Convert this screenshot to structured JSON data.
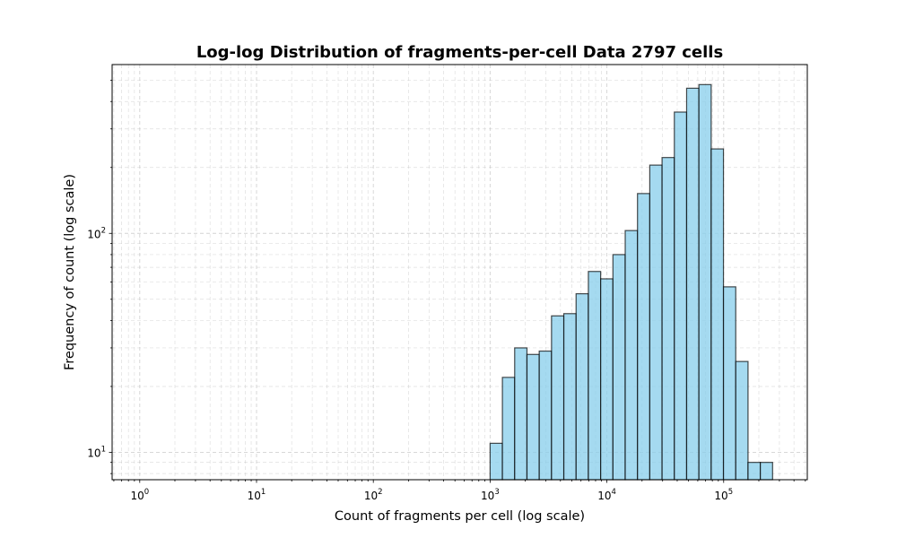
{
  "chart_data": {
    "type": "bar",
    "title": "Log-log Distribution of fragments-per-cell Data 2797 cells",
    "xlabel": "Count of fragments per cell (log scale)",
    "ylabel": "Frequency of count (log scale)",
    "x_scale": "log",
    "y_scale": "log",
    "xlim": [
      0.58,
      520000
    ],
    "ylim": [
      7.5,
      590
    ],
    "grid": true,
    "grid_style": "dashed",
    "bar_color": "#87CEEB",
    "bar_edge_color": "#000000",
    "x_ticks": [
      {
        "base": "10",
        "exp": "0",
        "value": 1
      },
      {
        "base": "10",
        "exp": "1",
        "value": 10
      },
      {
        "base": "10",
        "exp": "2",
        "value": 100
      },
      {
        "base": "10",
        "exp": "3",
        "value": 1000
      },
      {
        "base": "10",
        "exp": "4",
        "value": 10000
      },
      {
        "base": "10",
        "exp": "5",
        "value": 100000
      }
    ],
    "y_ticks": [
      {
        "base": "10",
        "exp": "1",
        "value": 10
      },
      {
        "base": "10",
        "exp": "2",
        "value": 100
      }
    ],
    "bins": [
      {
        "x0": 1000,
        "x1": 1274,
        "count": 11
      },
      {
        "x0": 1274,
        "x1": 1623,
        "count": 22
      },
      {
        "x0": 1623,
        "x1": 2068,
        "count": 30
      },
      {
        "x0": 2068,
        "x1": 2634,
        "count": 28
      },
      {
        "x0": 2634,
        "x1": 3356,
        "count": 29
      },
      {
        "x0": 3356,
        "x1": 4276,
        "count": 42
      },
      {
        "x0": 4276,
        "x1": 5448,
        "count": 43
      },
      {
        "x0": 5448,
        "x1": 6940,
        "count": 53
      },
      {
        "x0": 6940,
        "x1": 8841,
        "count": 67
      },
      {
        "x0": 8841,
        "x1": 11264,
        "count": 62
      },
      {
        "x0": 11264,
        "x1": 14350,
        "count": 80
      },
      {
        "x0": 14350,
        "x1": 18282,
        "count": 103
      },
      {
        "x0": 18282,
        "x1": 23291,
        "count": 152
      },
      {
        "x0": 23291,
        "x1": 29672,
        "count": 205
      },
      {
        "x0": 29672,
        "x1": 37802,
        "count": 222
      },
      {
        "x0": 37802,
        "x1": 48159,
        "count": 358
      },
      {
        "x0": 48159,
        "x1": 61354,
        "count": 460
      },
      {
        "x0": 61354,
        "x1": 78164,
        "count": 478
      },
      {
        "x0": 78164,
        "x1": 99580,
        "count": 243
      },
      {
        "x0": 99580,
        "x1": 126863,
        "count": 57
      },
      {
        "x0": 126863,
        "x1": 161622,
        "count": 26
      },
      {
        "x0": 161622,
        "x1": 205904,
        "count": 9
      },
      {
        "x0": 205904,
        "x1": 262318,
        "count": 9
      }
    ]
  }
}
